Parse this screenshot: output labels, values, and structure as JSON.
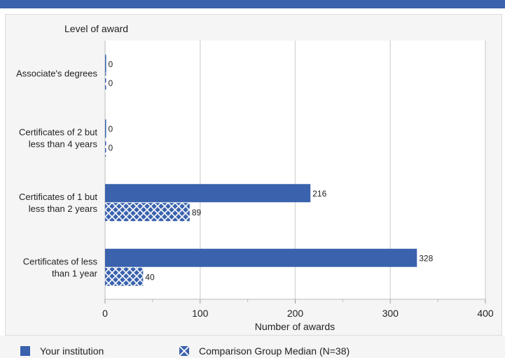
{
  "chart_data": {
    "type": "bar",
    "orientation": "horizontal",
    "ylabel": "Level of award",
    "xlabel": "Number of awards",
    "categories": [
      [
        "Associate's degrees"
      ],
      [
        "Certificates of 2 but",
        "less than 4 years"
      ],
      [
        "Certificates of 1 but",
        "less than 2 years"
      ],
      [
        "Certificates of less",
        "than 1 year"
      ]
    ],
    "series": [
      {
        "name": "Your institution",
        "values": [
          0,
          0,
          216,
          328
        ],
        "color": "#3a62ad",
        "pattern": "solid"
      },
      {
        "name": "Comparison Group Median (N=38)",
        "values": [
          0,
          0,
          89,
          40
        ],
        "color": "#3a62ad",
        "pattern": "crosshatch"
      }
    ],
    "xlim": [
      0,
      400
    ],
    "xticks": [
      0,
      100,
      200,
      300,
      400
    ],
    "grid": true,
    "legend_position": "bottom"
  }
}
